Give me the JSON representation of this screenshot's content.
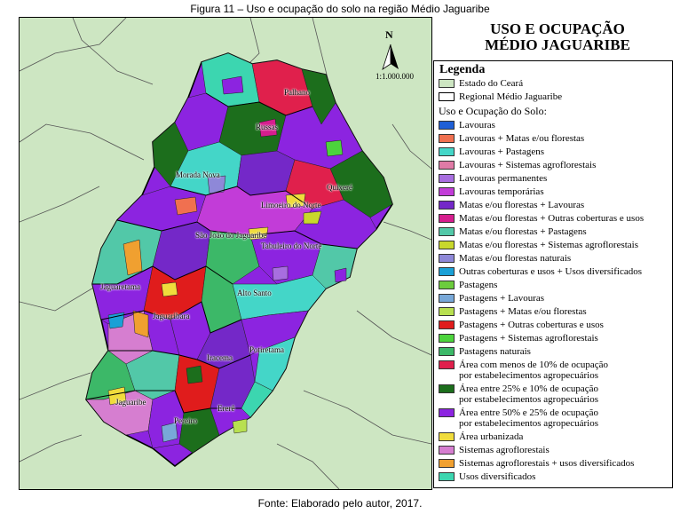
{
  "figure_caption": "Figura 11 – Uso e ocupação do solo na região Médio Jaguaribe",
  "source": "Fonte: Elaborado pelo autor, 2017.",
  "map_title_line1": "USO E OCUPAÇÃO",
  "map_title_line2": "MÉDIO JAGUARIBE",
  "scale": "1:1.000.000",
  "north_label": "N",
  "legend": {
    "title": "Legenda",
    "state_label": "Estado do Ceará",
    "state_color": "#cde6c2",
    "region_label": "Regional Médio Jaguaribe",
    "region_color": "#ffffff",
    "subtitle": "Uso e Ocupação do Solo:",
    "items": [
      {
        "label": "Lavouras",
        "color": "#1f5fd6"
      },
      {
        "label": "Lavouras + Matas e/ou florestas",
        "color": "#f07050"
      },
      {
        "label": "Lavouras + Pastagens",
        "color": "#44d6c8"
      },
      {
        "label": "Lavouras + Sistemas agroflorestais",
        "color": "#e07aa6"
      },
      {
        "label": "Lavouras permanentes",
        "color": "#a86ee0"
      },
      {
        "label": "Lavouras temporárias",
        "color": "#c23cd8"
      },
      {
        "label": "Matas e/ou florestas + Lavouras",
        "color": "#7428c8"
      },
      {
        "label": "Matas e/ou florestas + Outras coberturas e usos",
        "color": "#d61e8e"
      },
      {
        "label": "Matas e/ou florestas + Pastagens",
        "color": "#52c8a8"
      },
      {
        "label": "Matas e/ou florestas + Sistemas agroflorestais",
        "color": "#c8d82c"
      },
      {
        "label": "Matas e/ou florestas naturais",
        "color": "#8e88d8"
      },
      {
        "label": "Outras coberturas e usos + Usos diversificados",
        "color": "#1aa0d6"
      },
      {
        "label": "Pastagens",
        "color": "#6ccc3c"
      },
      {
        "label": "Pastagens + Lavouras",
        "color": "#78a8d8"
      },
      {
        "label": "Pastagens + Matas e/ou florestas",
        "color": "#b8e050"
      },
      {
        "label": "Pastagens + Outras coberturas e usos",
        "color": "#e01c1c"
      },
      {
        "label": "Pastagens + Sistemas agroflorestais",
        "color": "#4cd43c"
      },
      {
        "label": "Pastagens naturais",
        "color": "#3cb868"
      },
      {
        "label": "Área com menos de 10% de ocupação\npor estabelecimentos agropecuários",
        "color": "#e0204c"
      },
      {
        "label": "Área entre 25% e 10% de ocupação\npor estabelecimentos agropecuários",
        "color": "#1c6e1c"
      },
      {
        "label": "Área entre 50% e 25% de ocupação\npor estabelecimentos agropecuários",
        "color": "#8c24e0"
      },
      {
        "label": "Área urbanizada",
        "color": "#f0dc3c"
      },
      {
        "label": "Sistemas agroflorestais",
        "color": "#d67ed0"
      },
      {
        "label": "Sistemas agroflorestais + usos diversificados",
        "color": "#f0a030"
      },
      {
        "label": "Usos diversificados",
        "color": "#3cd6b0"
      }
    ]
  },
  "places": [
    {
      "name": "Palhano"
    },
    {
      "name": "Russas"
    },
    {
      "name": "Morada Nova"
    },
    {
      "name": "Quixeré"
    },
    {
      "name": "Limoeiro do Norte"
    },
    {
      "name": "São João do Jaguaribe"
    },
    {
      "name": "Tabuleiro do Norte"
    },
    {
      "name": "Jaguaretama"
    },
    {
      "name": "Alto Santo"
    },
    {
      "name": "Jaguaribara"
    },
    {
      "name": "Potiretama"
    },
    {
      "name": "Iracema"
    },
    {
      "name": "Jaguaribe"
    },
    {
      "name": "Ererê"
    },
    {
      "name": "Pereiro"
    }
  ]
}
